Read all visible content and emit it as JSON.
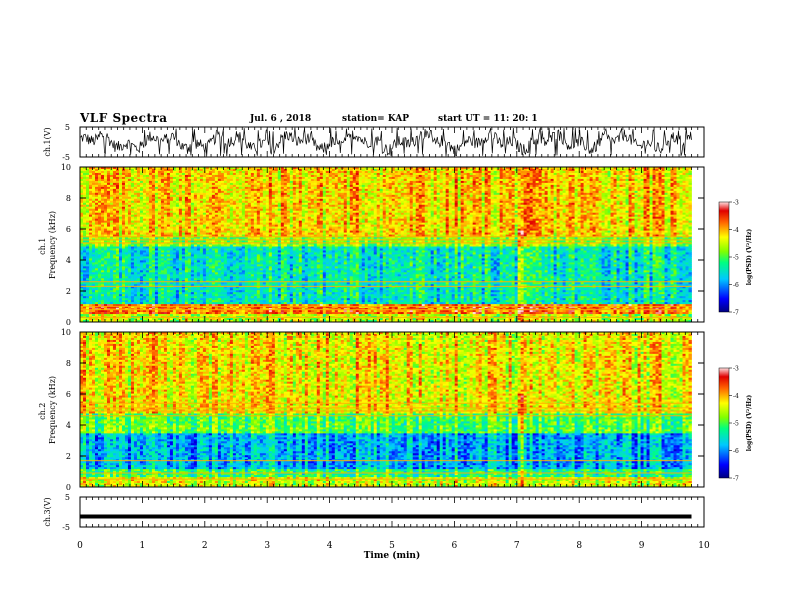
{
  "header": {
    "title": "VLF Spectra",
    "date": "Jul. 6 , 2018",
    "station": "station= KAP",
    "start": "start UT = 11: 20: 1"
  },
  "chart_data": [
    {
      "type": "line",
      "title": "",
      "ylabel": "ch.1(V)",
      "ylim": [
        -5,
        5
      ],
      "y_ticks": [
        "5",
        "-5"
      ],
      "xlim": [
        0,
        10
      ],
      "x_end": 9.8,
      "series": [
        {
          "values_description": "noisy waveform, approx range -4.5 to 4.5 V, mean ~0"
        }
      ]
    },
    {
      "type": "heatmap",
      "ylabel": "ch.1\nFrequency (kHz)",
      "ylim": [
        0,
        10
      ],
      "y_ticks": [
        "0",
        "2",
        "4",
        "6",
        "8",
        "10"
      ],
      "xlim": [
        0,
        10
      ],
      "x_end": 9.8,
      "colorbar": {
        "label": "log(PSD) (V²/Hz)",
        "min": -7,
        "max": -3,
        "ticks": [
          "-3",
          "-4",
          "-5",
          "-6",
          "-7"
        ]
      },
      "bands": [
        {
          "from": 0,
          "to": 0.5,
          "level": -4.6
        },
        {
          "from": 0.5,
          "to": 1.1,
          "level": -3.8
        },
        {
          "from": 1.1,
          "to": 4.9,
          "level": -5.5
        },
        {
          "from": 4.9,
          "to": 5.5,
          "level": -4.8
        },
        {
          "from": 5.5,
          "to": 10,
          "level": -4.2
        }
      ],
      "lines_khz": [
        0.3,
        0.8,
        1.0,
        2.3,
        2.6,
        5.1,
        5.3,
        5.5
      ]
    },
    {
      "type": "heatmap",
      "ylabel": "ch.2\nFrequency (kHz)",
      "ylim": [
        0,
        10
      ],
      "y_ticks": [
        "0",
        "2",
        "4",
        "6",
        "8",
        "10"
      ],
      "xlim": [
        0,
        10
      ],
      "x_end": 9.8,
      "colorbar": {
        "label": "log(PSD) (V²/Hz)",
        "min": -7,
        "max": -3,
        "ticks": [
          "-3",
          "-4",
          "-5",
          "-6",
          "-7"
        ]
      },
      "bands": [
        {
          "from": 0,
          "to": 0.7,
          "level": -4.5
        },
        {
          "from": 0.7,
          "to": 1.2,
          "level": -5.2
        },
        {
          "from": 1.2,
          "to": 3.5,
          "level": -5.9
        },
        {
          "from": 3.5,
          "to": 4.8,
          "level": -5.0
        },
        {
          "from": 4.8,
          "to": 10,
          "level": -4.3
        }
      ],
      "lines_khz": [
        0.5,
        0.9,
        1.7,
        4.6,
        4.9,
        5.1,
        5.4
      ]
    },
    {
      "type": "line",
      "ylabel": "ch.3(V)",
      "ylim": [
        -5,
        5
      ],
      "y_ticks": [
        "5",
        "-5"
      ],
      "xlim": [
        0,
        10
      ],
      "x_end": 9.8,
      "series": [
        {
          "values_description": "flat line at about -1.5 V"
        }
      ],
      "level": -1.5
    }
  ],
  "x_axis": {
    "label": "Time (min)",
    "ticks": [
      "0",
      "1",
      "2",
      "3",
      "4",
      "5",
      "6",
      "7",
      "8",
      "9",
      "10"
    ]
  }
}
